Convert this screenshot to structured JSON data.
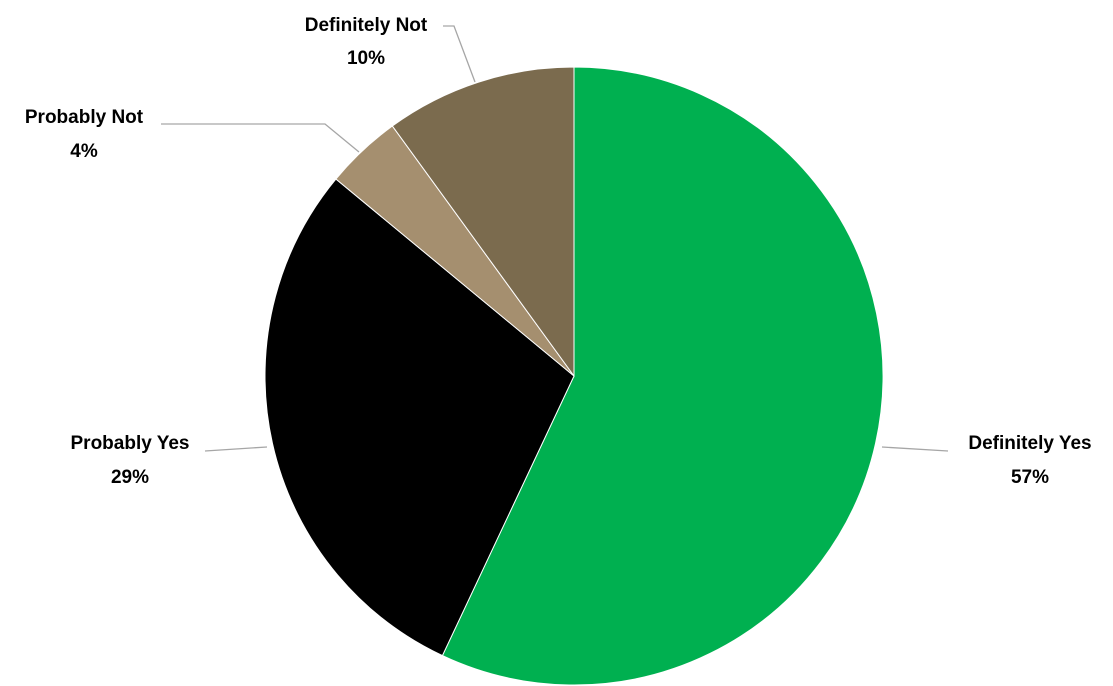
{
  "chart_data": {
    "type": "pie",
    "title": "",
    "start_angle_deg": 0,
    "direction": "clockwise",
    "labels_show": [
      "category",
      "percent"
    ],
    "slices": [
      {
        "label": "Definitely Yes",
        "value": 57,
        "percent_label": "57%",
        "color": "#00b050"
      },
      {
        "label": "Probably Yes",
        "value": 29,
        "percent_label": "29%",
        "color": "#000000"
      },
      {
        "label": "Probably Not",
        "value": 4,
        "percent_label": "4%",
        "color": "#a58f6f"
      },
      {
        "label": "Definitely Not",
        "value": 10,
        "percent_label": "10%",
        "color": "#7b6b4e"
      }
    ]
  }
}
